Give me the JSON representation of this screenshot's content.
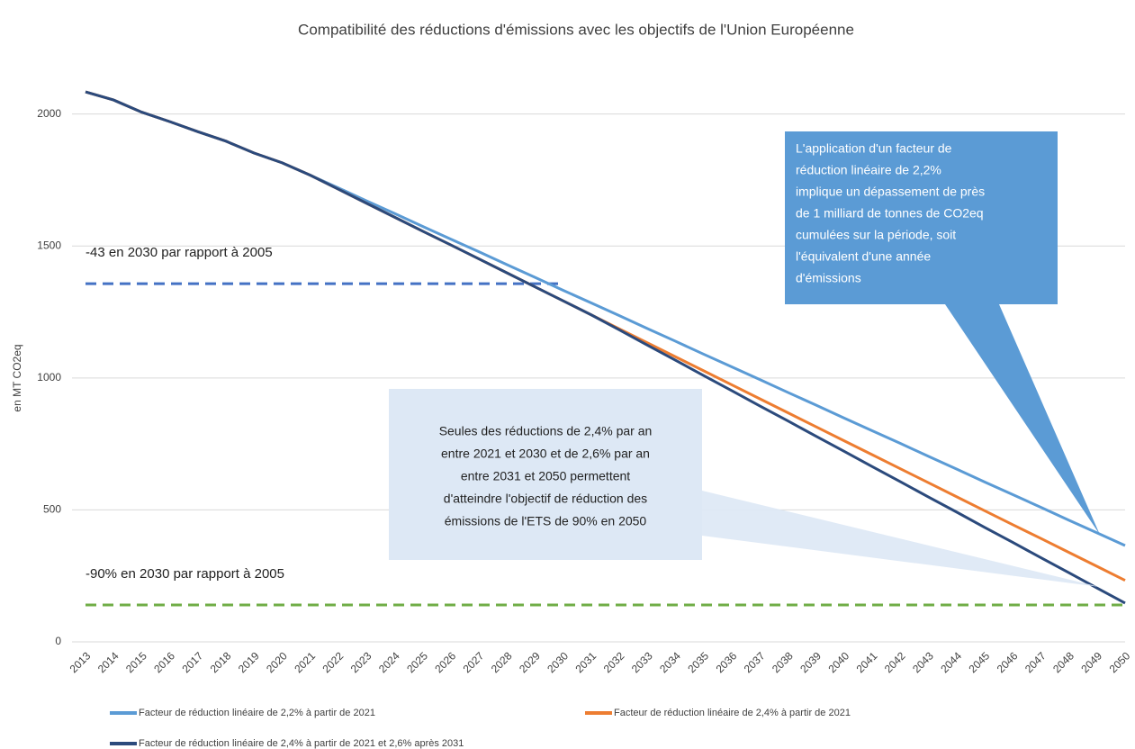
{
  "chart_data": {
    "type": "line",
    "title": "Compatibilité des réductions d'émissions avec les objectifs de l'Union Européenne",
    "ylabel": "en MT CO2eq",
    "categories": [
      "2013",
      "2014",
      "2015",
      "2016",
      "2017",
      "2018",
      "2019",
      "2020",
      "2021",
      "2022",
      "2023",
      "2024",
      "2025",
      "2026",
      "2027",
      "2028",
      "2029",
      "2030",
      "2031",
      "2032",
      "2033",
      "2034",
      "2035",
      "2036",
      "2037",
      "2038",
      "2039",
      "2040",
      "2041",
      "2042",
      "2043",
      "2044",
      "2045",
      "2046",
      "2047",
      "2048",
      "2049",
      "2050"
    ],
    "series": [
      {
        "name": "Facteur de réduction linéaire de 2,2% à partir de 2021",
        "color": "#5b9bd5",
        "values": [
          2084,
          2053,
          2007,
          1971,
          1933,
          1897,
          1852,
          1815,
          1768,
          1720,
          1671,
          1623,
          1574,
          1526,
          1478,
          1429,
          1381,
          1332,
          1284,
          1236,
          1187,
          1139,
          1090,
          1042,
          994,
          945,
          897,
          848,
          800,
          752,
          703,
          655,
          606,
          558,
          510,
          461,
          413,
          365
        ]
      },
      {
        "name": "Facteur de réduction linéaire de 2,4% à partir de 2021",
        "color": "#ed7d31",
        "values": [
          2084,
          2053,
          2007,
          1971,
          1933,
          1897,
          1852,
          1815,
          1768,
          1715,
          1662,
          1609,
          1556,
          1504,
          1451,
          1398,
          1345,
          1292,
          1239,
          1186,
          1133,
          1080,
          1027,
          974,
          921,
          868,
          815,
          762,
          709,
          656,
          603,
          550,
          497,
          444,
          392,
          339,
          286,
          233
        ]
      },
      {
        "name": "Facteur de réduction linéaire de 2,4% à partir de 2021 et 2,6% après 2031",
        "color": "#2b4a7c",
        "values": [
          2084,
          2053,
          2007,
          1971,
          1933,
          1897,
          1852,
          1815,
          1768,
          1715,
          1662,
          1609,
          1556,
          1504,
          1451,
          1398,
          1345,
          1292,
          1239,
          1182,
          1124,
          1067,
          1009,
          952,
          894,
          837,
          779,
          722,
          664,
          607,
          549,
          492,
          434,
          377,
          319,
          262,
          204,
          147
        ]
      }
    ],
    "ylim": [
      0,
      2200
    ],
    "yticks": [
      0,
      500,
      1000,
      1500,
      2000
    ],
    "grid": true,
    "reference_lines": [
      {
        "label": "-43 en 2030 par rapport à 2005",
        "value": 1357,
        "from": "2013",
        "to": "2030",
        "color": "#4472c4"
      },
      {
        "label": "-90% en 2030 par rapport à 2005",
        "value": 140,
        "from": "2013",
        "to": "2050",
        "color": "#70ad47"
      }
    ],
    "callouts": [
      {
        "lines": [
          "L'application d'un facteur de",
          "réduction linéaire de 2,2%",
          "implique un dépassement de près",
          "de 1 milliard de tonnes de CO2eq",
          "cumulées sur la période, soit",
          "l'équivalent d'une année",
          "d'émissions"
        ]
      },
      {
        "lines": [
          "Seules des réductions de 2,4% par an",
          "entre 2021 et 2030 et de 2,6% par an",
          "entre 2031 et 2050 permettent",
          "d'atteindre l'objectif de réduction des",
          "émissions de l'ETS de 90% en 2050"
        ]
      }
    ]
  }
}
